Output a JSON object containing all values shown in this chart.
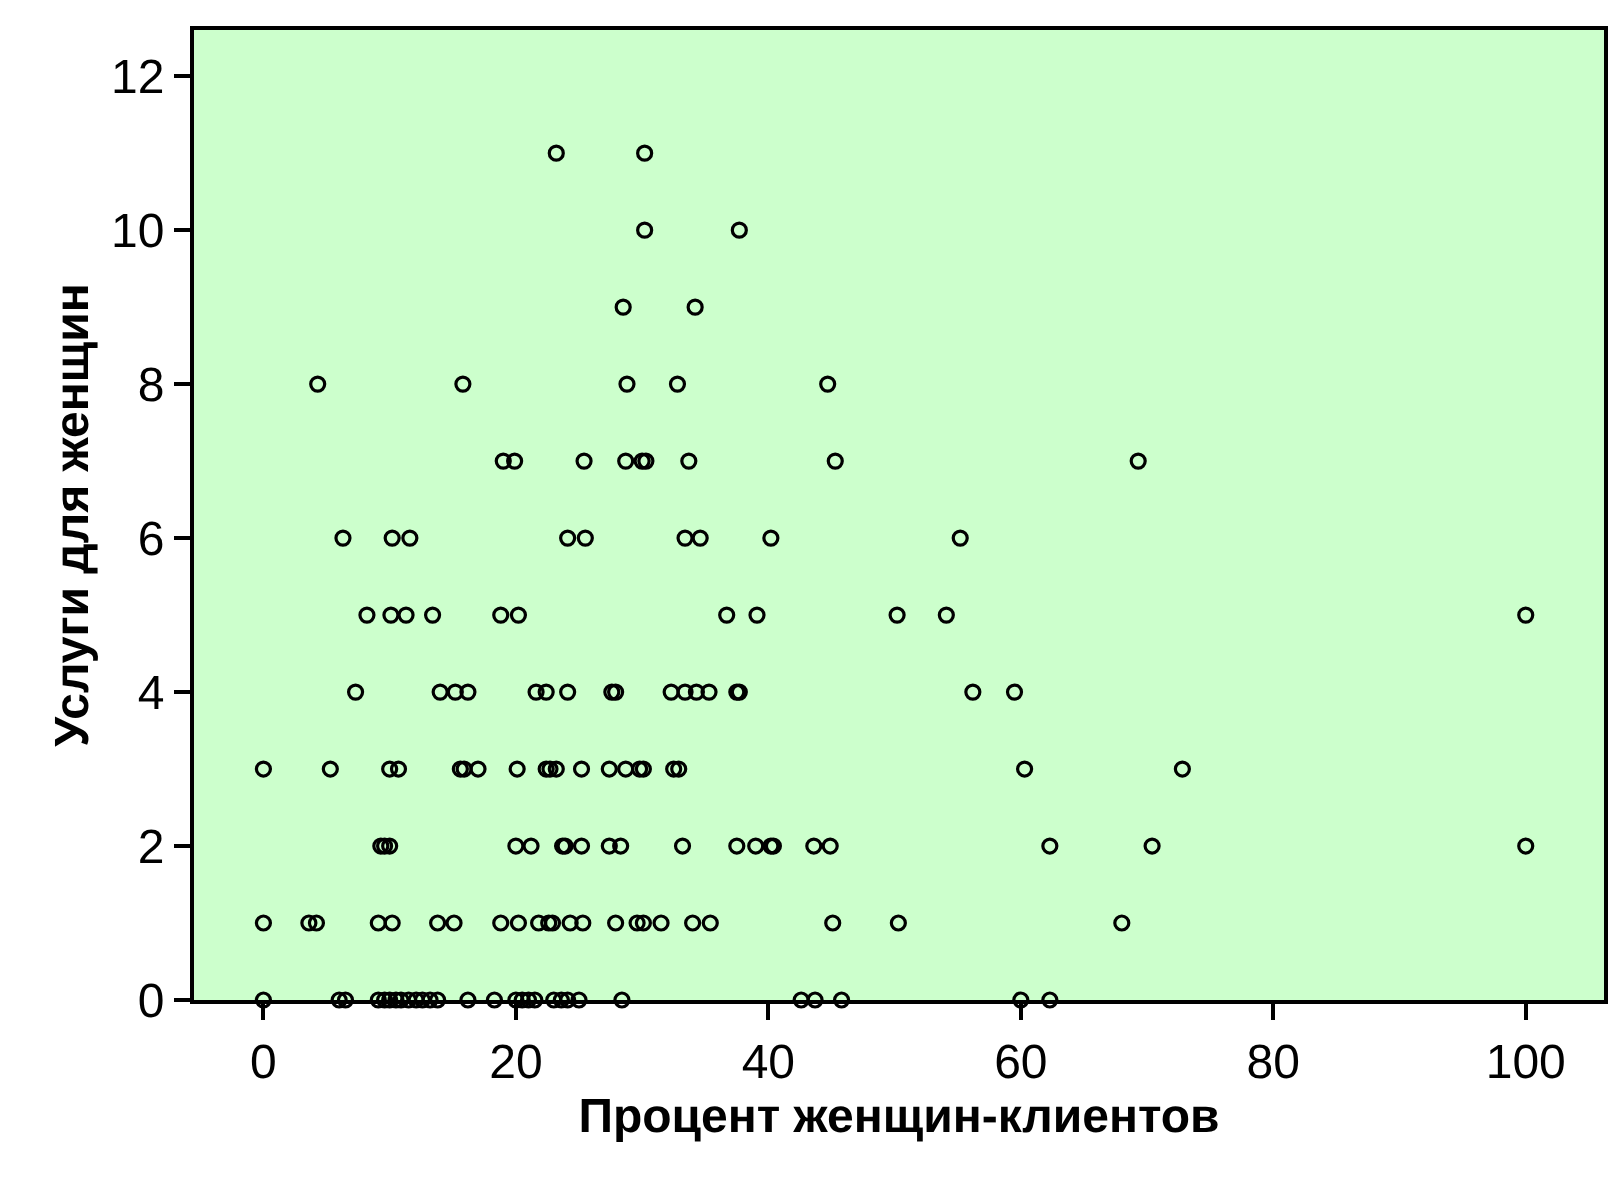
{
  "chart_data": {
    "type": "scatter",
    "xlabel": "Процент женщин-клиентов",
    "ylabel": "Услуги для женщин",
    "x": [
      23.2,
      30.2,
      30.2,
      37.7,
      28.5,
      34.2,
      4.3,
      15.8,
      28.8,
      32.8,
      44.7,
      19.0,
      19.9,
      25.4,
      28.7,
      30.0,
      30.3,
      33.7,
      45.3,
      69.3,
      6.3,
      10.2,
      11.6,
      24.1,
      25.5,
      33.4,
      34.6,
      40.2,
      55.2,
      8.2,
      10.1,
      11.3,
      13.4,
      18.8,
      20.2,
      36.7,
      39.1,
      50.2,
      54.1,
      100,
      7.3,
      14.0,
      15.2,
      16.2,
      21.6,
      22.4,
      24.1,
      27.6,
      27.9,
      32.3,
      33.4,
      34.3,
      35.3,
      37.5,
      37.7,
      56.2,
      59.5,
      0,
      5.3,
      10.0,
      10.7,
      15.6,
      15.9,
      17.0,
      20.1,
      22.4,
      22.7,
      23.2,
      25.2,
      27.4,
      28.7,
      29.8,
      30.1,
      32.5,
      32.9,
      60.3,
      72.8,
      9.3,
      9.6,
      10.0,
      20.0,
      21.2,
      23.7,
      23.9,
      25.2,
      27.4,
      28.3,
      33.2,
      37.5,
      39.0,
      40.2,
      40.4,
      43.6,
      44.9,
      62.3,
      70.4,
      100,
      0,
      3.6,
      4.2,
      9.1,
      10.2,
      13.8,
      15.1,
      18.8,
      20.2,
      21.8,
      22.6,
      22.9,
      24.3,
      25.3,
      27.9,
      29.6,
      30.1,
      31.5,
      34.0,
      35.4,
      45.1,
      50.3,
      68.0,
      0,
      6.0,
      6.5,
      9.1,
      9.6,
      10.0,
      10.5,
      10.9,
      11.5,
      12.1,
      12.6,
      13.2,
      13.8,
      16.2,
      18.3,
      20.0,
      20.5,
      21.0,
      21.5,
      23.0,
      23.6,
      24.1,
      25.0,
      28.4,
      42.6,
      43.7,
      45.8,
      60.0,
      62.3
    ],
    "values": [
      11,
      11,
      10,
      10,
      9,
      9,
      8,
      8,
      8,
      8,
      8,
      7,
      7,
      7,
      7,
      7,
      7,
      7,
      7,
      7,
      6,
      6,
      6,
      6,
      6,
      6,
      6,
      6,
      6,
      5,
      5,
      5,
      5,
      5,
      5,
      5,
      5,
      5,
      5,
      5,
      4,
      4,
      4,
      4,
      4,
      4,
      4,
      4,
      4,
      4,
      4,
      4,
      4,
      4,
      4,
      4,
      4,
      3,
      3,
      3,
      3,
      3,
      3,
      3,
      3,
      3,
      3,
      3,
      3,
      3,
      3,
      3,
      3,
      3,
      3,
      3,
      3,
      2,
      2,
      2,
      2,
      2,
      2,
      2,
      2,
      2,
      2,
      2,
      2,
      2,
      2,
      2,
      2,
      2,
      2,
      2,
      2,
      1,
      1,
      1,
      1,
      1,
      1,
      1,
      1,
      1,
      1,
      1,
      1,
      1,
      1,
      1,
      1,
      1,
      1,
      1,
      1,
      1,
      1,
      1,
      0,
      0,
      0,
      0,
      0,
      0,
      0,
      0,
      0,
      0,
      0,
      0,
      0,
      0,
      0,
      0,
      0,
      0,
      0,
      0,
      0,
      0,
      0,
      0,
      0,
      0,
      0,
      0,
      0
    ],
    "color": "#000000",
    "marker": "circle",
    "grid": false,
    "xlim": [
      -5.5,
      106.2
    ],
    "xticks": [
      0,
      20,
      40,
      60,
      80,
      100
    ],
    "ylim": [
      0,
      12.6
    ],
    "yticks": [
      0,
      2,
      4,
      6,
      8,
      10,
      12
    ]
  }
}
